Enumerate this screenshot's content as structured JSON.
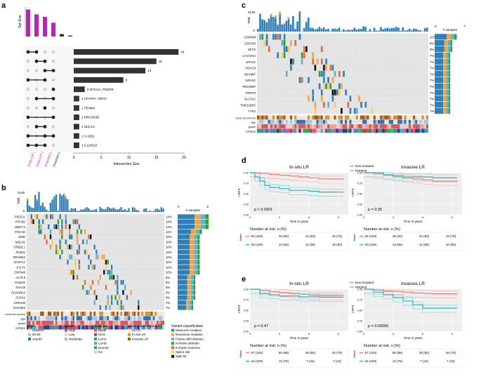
{
  "panels": {
    "a": {
      "letter": "a",
      "chart_data": {
        "type": "bar",
        "title": "",
        "xlabel": "Intersection Size",
        "ylabel": "Set Size",
        "sets": [
          "Insitu LR (RT)",
          "Insitu LR (no RT)",
          "Invasive LR (RT)",
          "Invasive LR (no RT)"
        ],
        "set_sizes": [
          55,
          45,
          40,
          28
        ],
        "intersection_values": [
          19,
          15,
          13,
          9,
          2,
          1,
          1,
          1,
          1,
          1,
          1
        ],
        "intersection_labels": [
          "",
          "",
          "",
          "",
          "2 MYO1A, PDZD8",
          "1 CFAP47, ISRT1",
          "1 TENM4",
          "1 DNASE2B",
          "1 NUCL3",
          "1 S-3252",
          "1 C1orf116"
        ],
        "xticks": [
          "20",
          "15",
          "10",
          "5",
          "0"
        ],
        "xlim": [
          0,
          20
        ]
      }
    },
    "b": {
      "letter": "b",
      "tmb_max": "3148",
      "tmb_min": "0",
      "tmb_label": "TMB",
      "samples_label": "# samples",
      "samples_ticks": [
        "0",
        "8"
      ],
      "genes": [
        "PIEZO1",
        "PRAB1",
        "WDFY4",
        "FOCAD",
        "DMD",
        "MSLN1",
        "ORB2L1",
        "PLBD1",
        "PRUNE2",
        "SH3TC1",
        "XYLT2",
        "ZNF646",
        "ACTL9",
        "FANCM",
        "NAA25",
        "PCDHB10",
        "ZCPAS",
        "GPR150",
        "SHANK3"
      ],
      "percents": [
        "14%",
        "14%",
        "14%",
        "11%",
        "10%",
        "10%",
        "10%",
        "10%",
        "10%",
        "10%",
        "10%",
        "10%",
        "8%",
        "8%",
        "8%",
        "8%",
        "8%",
        "7%",
        "7%"
      ],
      "tracks": [
        "local recurrence",
        "age",
        "grade",
        "subtype"
      ],
      "legend": {
        "age": {
          "title": "Age",
          "items": [
            "under50",
            "50-60",
            "over60"
          ],
          "colors": [
            "#e4e4e4",
            "#9ec5e8",
            "#2f6fb0"
          ]
        },
        "grade": {
          "title": "Grade",
          "items": [
            "High",
            "Low",
            "Moderate"
          ],
          "colors": [
            "#e0514f",
            "#f2c8c8",
            "#f49b9b"
          ]
        },
        "subtype": {
          "title": "Subtype",
          "items": [
            "Basal",
            "Her2",
            "LumA",
            "LumB",
            "Normal",
            "NA"
          ],
          "colors": [
            "#e14b8f",
            "#c53a3a",
            "#4b7bd1",
            "#3ab0c8",
            "#31a354",
            "#cccccc"
          ]
        },
        "lr": {
          "title": "Local recurrence (LR)",
          "items": [
            "no LR",
            "In-situ LR",
            "Invasive LR"
          ],
          "colors": [
            "#f4e6d2",
            "#d98d34",
            "#9b5a1f"
          ]
        },
        "variant": {
          "title": "Variant classification",
          "items": [
            "Missense mutation",
            "Nonsense mutation",
            "Frame-shift deletion",
            "In-frame deletion",
            "In-frame insertion",
            "Splice site",
            "Multi hit"
          ],
          "colors": [
            "#2f7fb8",
            "#f7a440",
            "#5ab2d6",
            "#33a02c",
            "#e76a3b",
            "#fbd34d",
            "#111111"
          ]
        }
      }
    },
    "c": {
      "letter": "c",
      "tmb_max": "3148",
      "tmb_min": "0",
      "tmb_label": "TMB",
      "samples_label": "# samples",
      "samples_ticks": [
        "0",
        "7"
      ],
      "genes": [
        "ZSWIM8",
        "CEP295",
        "SETX",
        "CACNA1I",
        "EPAS1",
        "HDAC9",
        "NEXMIF",
        "NRAN1",
        "PDCD6IP",
        "PRRT4",
        "SLC3A1",
        "TNKS1BP1",
        "TYK2"
      ],
      "percents": [
        "10%",
        "8%",
        "8%",
        "7%",
        "7%",
        "7%",
        "7%",
        "7%",
        "7%",
        "7%",
        "7%",
        "7%",
        "7%"
      ],
      "tracks": [
        "local recurrence",
        "age",
        "grade",
        "subtype"
      ]
    },
    "d": {
      "letter": "d",
      "legend": [
        "Non-mutated",
        "Mutated"
      ],
      "risk_title": "Number at risk: n (%)",
      "strata_label": "Strata",
      "charts": [
        {
          "title": "In-situ LR",
          "pvalue": "p < 0.0001",
          "ylabel": "LRFS",
          "xlabel": "Time in years",
          "yticks": [
            "1.00",
            "0.75",
            "0.50",
            "0.25",
            "0.00"
          ],
          "xticks": [
            "0",
            "3",
            "6",
            "9"
          ],
          "risk_rows": [
            [
              "53 (100)",
              "49 (92)",
              "44 (83)",
              "42 (79)"
            ],
            [
              "20 (100)",
              "13 (65)",
              "11 (55)",
              "10 (50)"
            ]
          ],
          "chart_data": {
            "type": "line",
            "series": [
              {
                "name": "Non-mutated",
                "x": [
                  0,
                  1,
                  2,
                  3,
                  4,
                  5,
                  6,
                  7,
                  9.5
                ],
                "y": [
                  1.0,
                  0.98,
                  0.96,
                  0.94,
                  0.92,
                  0.9,
                  0.88,
                  0.85,
                  0.84
                ]
              },
              {
                "name": "Mutated",
                "x": [
                  0,
                  0.5,
                  1,
                  1.5,
                  2,
                  3,
                  4,
                  6,
                  7,
                  9.5
                ],
                "y": [
                  1.0,
                  0.9,
                  0.8,
                  0.7,
                  0.65,
                  0.62,
                  0.58,
                  0.56,
                  0.54,
                  0.54
                ]
              }
            ],
            "xlim": [
              0,
              10
            ],
            "ylim": [
              0,
              1
            ]
          }
        },
        {
          "title": "Invasive LR",
          "pvalue": "p = 0.35",
          "ylabel": "LRFS",
          "xlabel": "Time in years",
          "yticks": [
            "1.00",
            "0.75",
            "0.50",
            "0.25",
            "0.00"
          ],
          "xticks": [
            "0",
            "3",
            "6",
            "9"
          ],
          "risk_rows": [
            [
              "53 (100)",
              "49 (92)",
              "44 (83)",
              "42 (79)"
            ],
            [
              "20 (100)",
              "13 (65)",
              "11 (55)",
              "10 (50)"
            ]
          ],
          "chart_data": {
            "type": "line",
            "series": [
              {
                "name": "Non-mutated",
                "x": [
                  0,
                  1,
                  2,
                  3,
                  4,
                  5,
                  6,
                  7,
                  9.5
                ],
                "y": [
                  1.0,
                  0.97,
                  0.94,
                  0.9,
                  0.87,
                  0.85,
                  0.83,
                  0.8,
                  0.78
                ]
              },
              {
                "name": "Mutated",
                "x": [
                  0,
                  2,
                  3,
                  4,
                  5,
                  7,
                  9.5
                ],
                "y": [
                  1.0,
                  0.95,
                  0.93,
                  0.9,
                  0.9,
                  0.88,
                  0.88
                ]
              }
            ],
            "xlim": [
              0,
              10
            ],
            "ylim": [
              0,
              1
            ]
          }
        }
      ]
    },
    "e": {
      "letter": "e",
      "legend": [
        "Non-mutated",
        "Mutated"
      ],
      "risk_title": "Number at risk: n (%)",
      "strata_label": "Strata",
      "charts": [
        {
          "title": "In-situ LR",
          "pvalue": "p = 0.47",
          "ylabel": "LRFS",
          "xlabel": "Time in years",
          "yticks": [
            "1.00",
            "0.75",
            "0.50",
            "0.25",
            "0.00"
          ],
          "xticks": [
            "0",
            "3",
            "6",
            "9"
          ],
          "risk_rows": [
            [
              "57 (100)",
              "50 (88)",
              "48 (84)",
              "45 (79)"
            ],
            [
              "16 (100)",
              "12 (75)",
              "7 (44)",
              "7 (44)"
            ]
          ],
          "chart_data": {
            "type": "line",
            "series": [
              {
                "name": "Non-mutated",
                "x": [
                  0,
                  1,
                  2,
                  3,
                  4,
                  5,
                  6,
                  7,
                  9.5
                ],
                "y": [
                  1.0,
                  0.97,
                  0.94,
                  0.92,
                  0.9,
                  0.88,
                  0.86,
                  0.85,
                  0.84
                ]
              },
              {
                "name": "Mutated",
                "x": [
                  0,
                  1,
                  2,
                  3,
                  5,
                  7,
                  9.5
                ],
                "y": [
                  1.0,
                  0.9,
                  0.87,
                  0.84,
                  0.82,
                  0.81,
                  0.81
                ]
              }
            ],
            "xlim": [
              0,
              10
            ],
            "ylim": [
              0,
              1
            ]
          }
        },
        {
          "title": "Invasive LR",
          "pvalue": "p = 0.00065",
          "ylabel": "LRFS",
          "xlabel": "Time in years",
          "yticks": [
            "1.00",
            "0.75",
            "0.50",
            "0.25",
            "0.00"
          ],
          "xticks": [
            "0",
            "3",
            "6",
            "9"
          ],
          "risk_rows": [
            [
              "57 (100)",
              "50 (88)",
              "48 (84)",
              "45 (79)"
            ],
            [
              "16 (100)",
              "12 (75)",
              "7 (44)",
              "7 (44)"
            ]
          ],
          "chart_data": {
            "type": "line",
            "series": [
              {
                "name": "Non-mutated",
                "x": [
                  0,
                  1,
                  2,
                  3,
                  4,
                  5,
                  6,
                  7,
                  9.5
                ],
                "y": [
                  1.0,
                  0.98,
                  0.96,
                  0.95,
                  0.93,
                  0.91,
                  0.9,
                  0.89,
                  0.88
                ]
              },
              {
                "name": "Mutated",
                "x": [
                  0,
                  1,
                  2,
                  3,
                  4,
                  5,
                  6,
                  7,
                  9.5
                ],
                "y": [
                  1.0,
                  0.93,
                  0.87,
                  0.8,
                  0.72,
                  0.63,
                  0.55,
                  0.55,
                  0.55
                ]
              }
            ],
            "xlim": [
              0,
              10
            ],
            "ylim": [
              0,
              1
            ]
          }
        }
      ]
    }
  },
  "colors": {
    "purple": "#b425b8",
    "dark_bar": "#333333",
    "nonmutated": "#ef7a74",
    "mutated": "#1fb8c4",
    "missense": "#2f7fb8",
    "nonsense": "#f7a440",
    "frameshift": "#5ab2d6",
    "inframe_del": "#33a02c",
    "inframe_ins": "#e76a3b",
    "splice": "#fbd34d",
    "multi": "#111111",
    "grid_bg": "#eeeeee"
  }
}
